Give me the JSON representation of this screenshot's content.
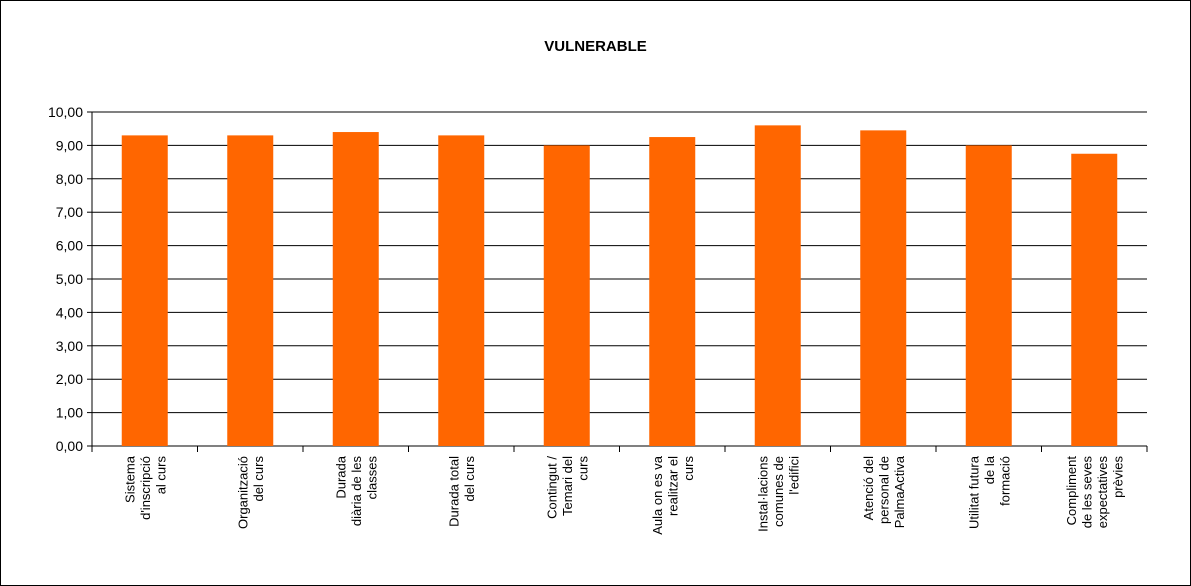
{
  "chart_data": {
    "type": "bar",
    "title": "VULNERABLE",
    "xlabel": "",
    "ylabel": "",
    "ylim": [
      0,
      10
    ],
    "ytick_step": 1,
    "ytick_labels": [
      "0,00",
      "1,00",
      "2,00",
      "3,00",
      "4,00",
      "5,00",
      "6,00",
      "7,00",
      "8,00",
      "9,00",
      "10,00"
    ],
    "grid": true,
    "legend": "none",
    "bar_color": "#FF6600",
    "categories": [
      [
        "Sistema",
        "d'inscripció",
        "al curs"
      ],
      [
        "Organització",
        "del curs"
      ],
      [
        "Durada",
        "diària de les",
        "classes"
      ],
      [
        "Durada total",
        "del curs"
      ],
      [
        "Contingut /",
        "Temari del",
        "curs"
      ],
      [
        "Aula on es va",
        "realitzar el",
        "curs"
      ],
      [
        "Instal·lacions",
        "comunes de",
        "l'edifici"
      ],
      [
        "Atenció del",
        "personal de",
        "PalmaActiva"
      ],
      [
        "Utilitat futura",
        "de la",
        "formació"
      ],
      [
        "Compliment",
        "de les seves",
        "expectatives",
        "prèvies"
      ]
    ],
    "values": [
      9.3,
      9.3,
      9.4,
      9.3,
      9.0,
      9.25,
      9.6,
      9.45,
      9.0,
      8.75
    ]
  }
}
